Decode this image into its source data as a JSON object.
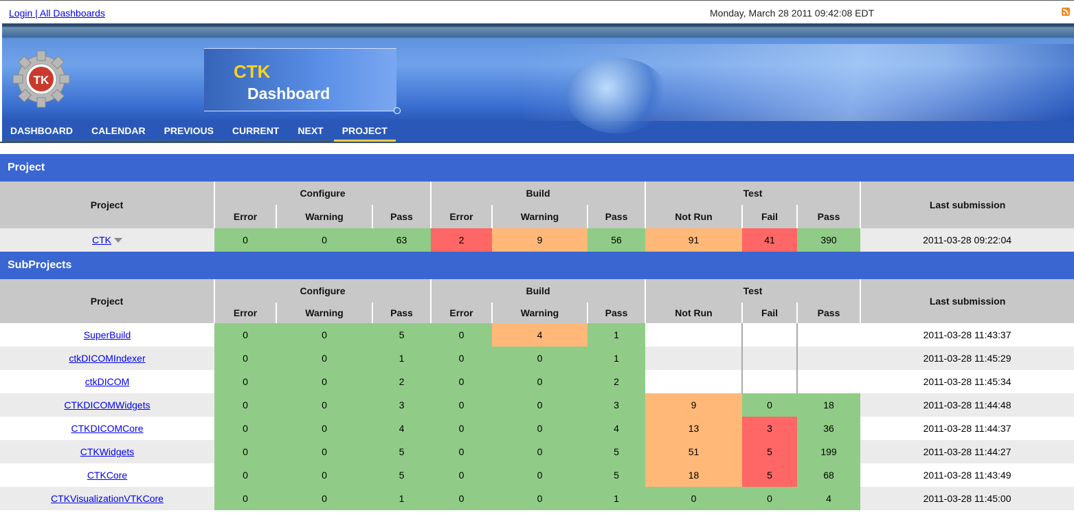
{
  "topbar": {
    "login": "Login",
    "separator": " | ",
    "all_dashboards": "All Dashboards",
    "datetime": "Monday, March 28 2011 09:42:08 EDT"
  },
  "banner": {
    "title": "CTK",
    "subtitle": "Dashboard",
    "logo_text": "TK"
  },
  "nav": [
    "DASHBOARD",
    "CALENDAR",
    "PREVIOUS",
    "CURRENT",
    "NEXT",
    "PROJECT"
  ],
  "nav_active": "PROJECT",
  "project_section": "Project",
  "subprojects_section": "SubProjects",
  "headers": {
    "project": "Project",
    "configure": "Configure",
    "build": "Build",
    "test": "Test",
    "last": "Last submission",
    "error": "Error",
    "warning": "Warning",
    "pass": "Pass",
    "not_run": "Not Run",
    "fail": "Fail"
  },
  "project_row": {
    "name": "CTK",
    "conf_error": "0",
    "conf_warning": "0",
    "conf_pass": "63",
    "build_error": "2",
    "build_warning": "9",
    "build_pass": "56",
    "test_notrun": "91",
    "test_fail": "41",
    "test_pass": "390",
    "last": "2011-03-28 09:22:04"
  },
  "subprojects": [
    {
      "name": "SuperBuild",
      "c": [
        "0",
        "0",
        "5"
      ],
      "b": [
        "0",
        "4",
        "1"
      ],
      "t": [
        "",
        "",
        ""
      ],
      "last": "2011-03-28 11:43:37"
    },
    {
      "name": "ctkDICOMIndexer",
      "c": [
        "0",
        "0",
        "1"
      ],
      "b": [
        "0",
        "0",
        "1"
      ],
      "t": [
        "",
        "",
        ""
      ],
      "last": "2011-03-28 11:45:29"
    },
    {
      "name": "ctkDICOM",
      "c": [
        "0",
        "0",
        "2"
      ],
      "b": [
        "0",
        "0",
        "2"
      ],
      "t": [
        "",
        "",
        ""
      ],
      "last": "2011-03-28 11:45:34"
    },
    {
      "name": "CTKDICOMWidgets",
      "c": [
        "0",
        "0",
        "3"
      ],
      "b": [
        "0",
        "0",
        "3"
      ],
      "t": [
        "9",
        "0",
        "18"
      ],
      "last": "2011-03-28 11:44:48"
    },
    {
      "name": "CTKDICOMCore",
      "c": [
        "0",
        "0",
        "4"
      ],
      "b": [
        "0",
        "0",
        "4"
      ],
      "t": [
        "13",
        "3",
        "36"
      ],
      "last": "2011-03-28 11:44:37"
    },
    {
      "name": "CTKWidgets",
      "c": [
        "0",
        "0",
        "5"
      ],
      "b": [
        "0",
        "0",
        "5"
      ],
      "t": [
        "51",
        "5",
        "199"
      ],
      "last": "2011-03-28 11:44:27"
    },
    {
      "name": "CTKCore",
      "c": [
        "0",
        "0",
        "5"
      ],
      "b": [
        "0",
        "0",
        "5"
      ],
      "t": [
        "18",
        "5",
        "68"
      ],
      "last": "2011-03-28 11:43:49"
    },
    {
      "name": "CTKVisualizationVTKCore",
      "c": [
        "0",
        "0",
        "1"
      ],
      "b": [
        "0",
        "0",
        "1"
      ],
      "t": [
        "0",
        "0",
        "4"
      ],
      "last": "2011-03-28 11:45:00"
    }
  ],
  "colors": {
    "section": "#3a66d1",
    "pass": "#90cc87",
    "warning": "#ffb878",
    "fail": "#ff6666",
    "header": "#c8c8c8"
  }
}
